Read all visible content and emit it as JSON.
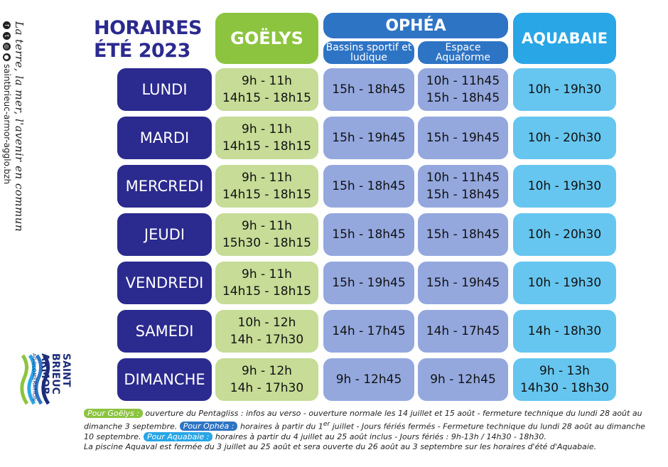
{
  "title": {
    "line1": "HORAIRES",
    "line2": "ÉTÉ 2023"
  },
  "side": {
    "slogan": "La terre, la mer, l'avenir en commun",
    "site": "saintbrieuc-armor-agglo.bzh"
  },
  "logo": {
    "line1": "SAINT",
    "line2": "BRIEUC",
    "line3": "ARMOR",
    "line4": "AGGLOMÉRATION"
  },
  "headers": {
    "goelys": "GOËLYS",
    "ophea": "OPHÉA",
    "ophea_sub1": "Bassins sportif et ludique",
    "ophea_sub2": "Espace Aquaforme",
    "aquabaie": "AQUABAIE"
  },
  "rows": [
    {
      "day": "LUNDI",
      "goelys": [
        "9h - 11h",
        "14h15 - 18h15"
      ],
      "ophea1": [
        "15h - 18h45"
      ],
      "ophea2": [
        "10h - 11h45",
        "15h - 18h45"
      ],
      "aquabaie": [
        "10h -  19h30"
      ]
    },
    {
      "day": "MARDI",
      "goelys": [
        "9h - 11h",
        "14h15 - 18h15"
      ],
      "ophea1": [
        "15h - 19h45"
      ],
      "ophea2": [
        "15h - 19h45"
      ],
      "aquabaie": [
        "10h - 20h30"
      ]
    },
    {
      "day": "MERCREDI",
      "goelys": [
        "9h - 11h",
        "14h15 - 18h15"
      ],
      "ophea1": [
        "15h - 18h45"
      ],
      "ophea2": [
        "10h - 11h45",
        "15h - 18h45"
      ],
      "aquabaie": [
        "10h - 19h30"
      ]
    },
    {
      "day": "JEUDI",
      "goelys": [
        "9h - 11h",
        "15h30 - 18h15"
      ],
      "ophea1": [
        "15h - 18h45"
      ],
      "ophea2": [
        "15h - 18h45"
      ],
      "aquabaie": [
        "10h - 20h30"
      ]
    },
    {
      "day": "VENDREDI",
      "goelys": [
        "9h - 11h",
        "14h15 - 18h15"
      ],
      "ophea1": [
        "15h - 19h45"
      ],
      "ophea2": [
        "15h - 19h45"
      ],
      "aquabaie": [
        "10h - 19h30"
      ]
    },
    {
      "day": "SAMEDI",
      "goelys": [
        "10h - 12h",
        "14h - 17h30"
      ],
      "ophea1": [
        "14h - 17h45"
      ],
      "ophea2": [
        "14h - 17h45"
      ],
      "aquabaie": [
        "14h - 18h30"
      ]
    },
    {
      "day": "DIMANCHE",
      "goelys": [
        "9h - 12h",
        "14h - 17h30"
      ],
      "ophea1": [
        "9h - 12h45"
      ],
      "ophea2": [
        "9h - 12h45"
      ],
      "aquabaie": [
        "9h - 13h",
        "14h30 - 18h30"
      ]
    }
  ],
  "footer": {
    "goelys_label": "Pour Goëlys :",
    "goelys_text": " ouverture du Pentagliss : infos au verso - ouverture normale les 14 juillet et 15 août - fermeture technique du lundi 28 août au dimanche 3 septembre. ",
    "ophea_label": "Pour Ophéa :",
    "ophea_text_a": " horaires à partir du 1",
    "ophea_sup": "er",
    "ophea_text_b": " juillet  - Jours fériés fermés - Fermeture technique du lundi 28 août au dimanche 10 septembre. ",
    "aqua_label": "Pour Aquabaie :",
    "aqua_text": " horaires à partir du 4 juillet au 25 août inclus - Jours fériés : 9h-13h / 14h30 - 18h30.",
    "aquaval_text": "La piscine Aquaval est fermée du 3 juillet au 25 août et sera ouverte du 26 août au 3 septembre sur les horaires d'été d'Aquabaie."
  },
  "colors": {
    "navy": "#2b2a8e",
    "green": "#8cc43f",
    "blue": "#2e74c4",
    "cyan": "#29a6e6"
  }
}
